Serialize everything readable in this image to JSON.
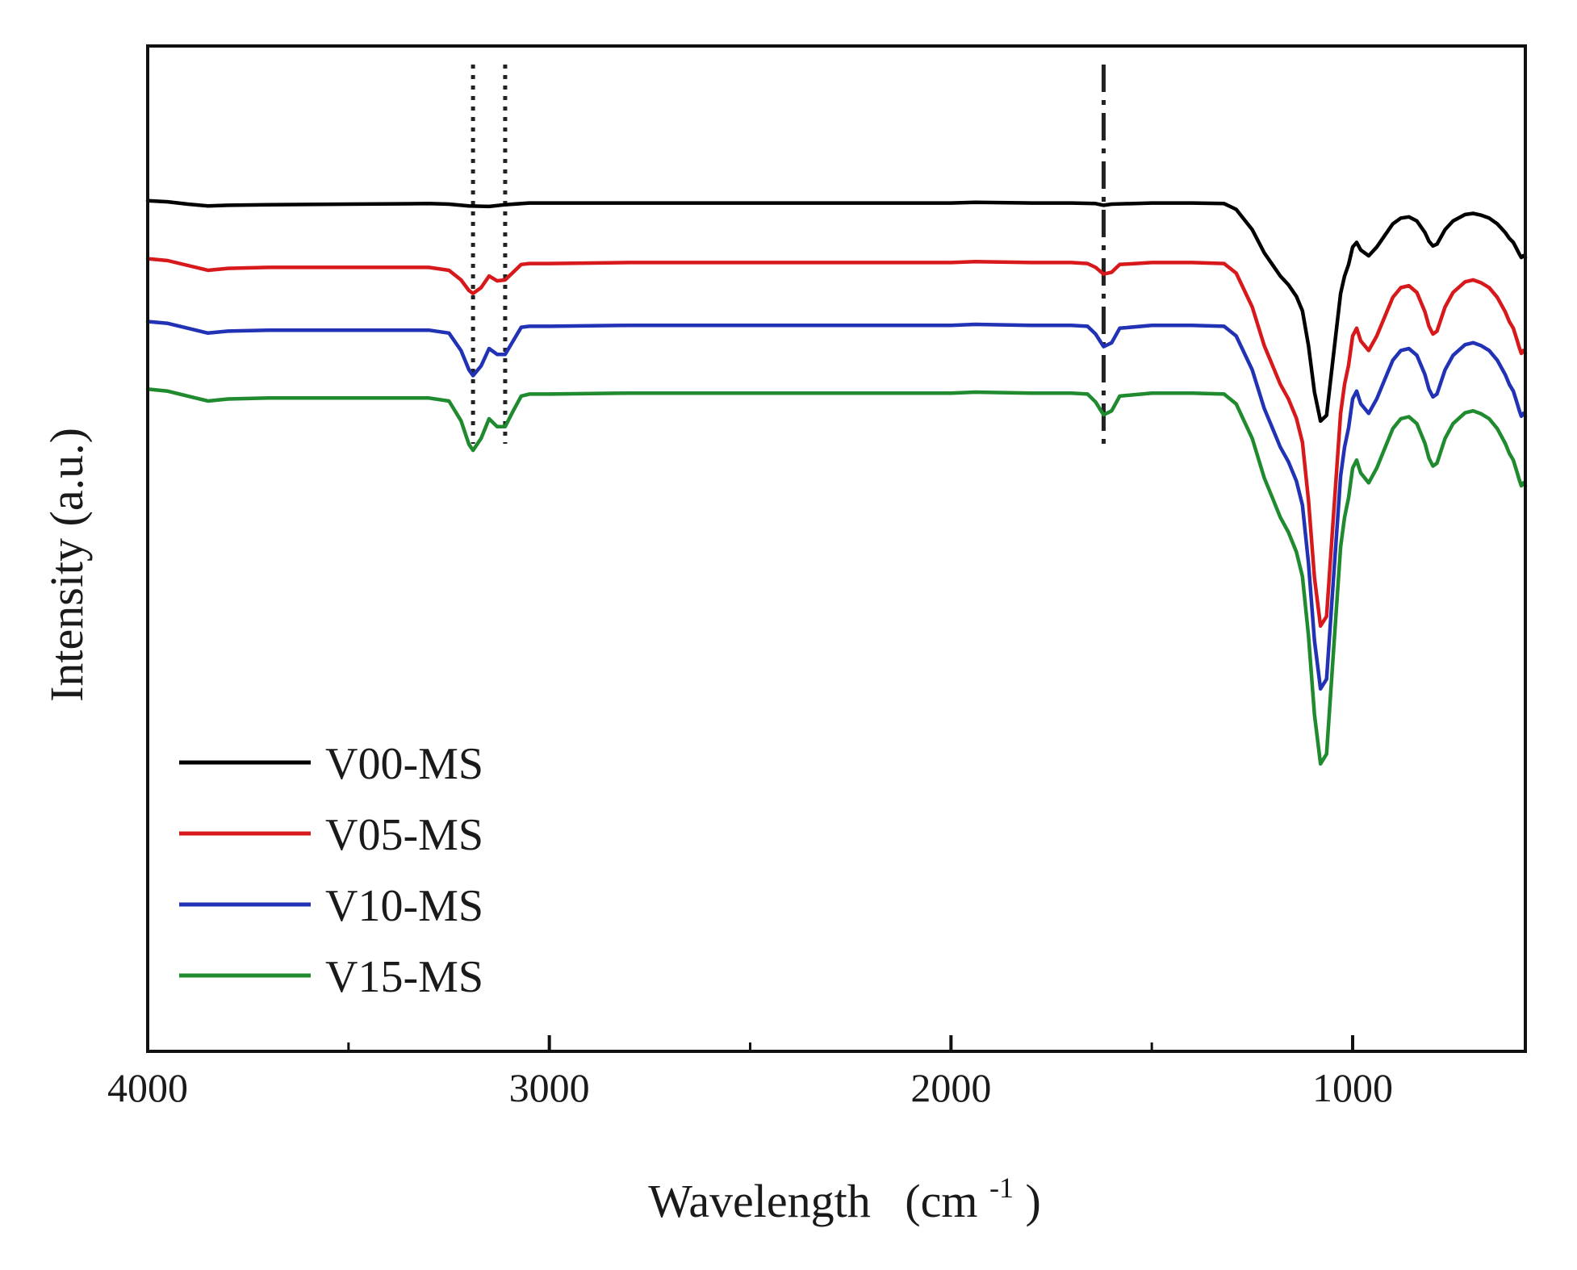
{
  "chart_data": {
    "type": "line",
    "title": "",
    "xlabel": "Wavelength",
    "xlabel_unit": "(cm",
    "xlabel_unit_sup": "-1",
    "xlabel_unit_close": ")",
    "ylabel": "Intensity  (a.u.)",
    "xlim": [
      4000,
      570
    ],
    "x_reversed": true,
    "x_ticks": [
      4000,
      3000,
      2000,
      1000
    ],
    "x_tick_labels": [
      "4000",
      "3000",
      "2000",
      "1000"
    ],
    "x_minor_ticks": [
      3500,
      2500,
      1500
    ],
    "ylim": [
      -88,
      16
    ],
    "y_ticks_labeled": false,
    "grid": false,
    "legend_position": "bottom-left",
    "reference_lines": [
      {
        "x": 3190,
        "style": "dotted"
      },
      {
        "x": 3110,
        "style": "dotted"
      },
      {
        "x": 1620,
        "style": "dash-dot"
      }
    ],
    "series": [
      {
        "name": "V00-MS",
        "color": "#000000",
        "offset": 0,
        "depth_scale": 0.6,
        "x": [
          4000,
          3950,
          3900,
          3850,
          3800,
          3700,
          3500,
          3300,
          3250,
          3200,
          3150,
          3110,
          3050,
          3000,
          2800,
          2500,
          2300,
          2000,
          1940,
          1800,
          1700,
          1640,
          1620,
          1600,
          1500,
          1400,
          1320,
          1290,
          1250,
          1220,
          1200,
          1180,
          1160,
          1140,
          1125,
          1110,
          1095,
          1080,
          1065,
          1050,
          1040,
          1030,
          1020,
          1010,
          1000,
          990,
          980,
          960,
          940,
          920,
          900,
          880,
          860,
          840,
          820,
          810,
          800,
          790,
          770,
          750,
          720,
          700,
          680,
          660,
          640,
          620,
          610,
          600,
          590,
          585,
          580,
          575,
          570
        ],
        "y": [
          0,
          -0.2,
          -0.6,
          -0.9,
          -0.8,
          -0.7,
          -0.6,
          -0.5,
          -0.6,
          -0.9,
          -1.0,
          -0.7,
          -0.4,
          -0.4,
          -0.4,
          -0.4,
          -0.4,
          -0.4,
          -0.3,
          -0.4,
          -0.4,
          -0.5,
          -0.8,
          -0.6,
          -0.4,
          -0.4,
          -0.5,
          -1.5,
          -5,
          -9,
          -11,
          -13,
          -14.5,
          -16.5,
          -19,
          -25,
          -33,
          -38,
          -37,
          -28,
          -22,
          -16,
          -13,
          -11,
          -8,
          -7.2,
          -8.5,
          -9.5,
          -8,
          -6,
          -4,
          -3,
          -2.8,
          -3.5,
          -5.5,
          -7,
          -7.8,
          -7.5,
          -5,
          -3.5,
          -2.4,
          -2.2,
          -2.5,
          -3,
          -4,
          -5.5,
          -6.5,
          -7.2,
          -8.5,
          -9.2,
          -9.8,
          -9.5,
          -9.8
        ]
      },
      {
        "name": "V05-MS",
        "color": "#d7191c",
        "offset": -6,
        "depth_scale": 1,
        "x": [
          4000,
          3950,
          3900,
          3850,
          3800,
          3700,
          3500,
          3300,
          3250,
          3220,
          3200,
          3190,
          3170,
          3150,
          3130,
          3110,
          3090,
          3070,
          3050,
          3000,
          2800,
          2500,
          2300,
          2000,
          1940,
          1800,
          1700,
          1660,
          1640,
          1620,
          1600,
          1580,
          1500,
          1400,
          1320,
          1290,
          1250,
          1220,
          1200,
          1180,
          1160,
          1140,
          1125,
          1110,
          1095,
          1080,
          1065,
          1050,
          1040,
          1030,
          1020,
          1010,
          1000,
          990,
          980,
          960,
          940,
          920,
          900,
          880,
          860,
          840,
          820,
          810,
          800,
          790,
          770,
          750,
          720,
          700,
          680,
          660,
          640,
          620,
          610,
          600,
          590,
          585,
          580,
          575,
          570
        ],
        "y": [
          0,
          -0.2,
          -0.7,
          -1.2,
          -1.0,
          -0.9,
          -0.9,
          -0.9,
          -1.2,
          -2.2,
          -3.3,
          -3.6,
          -3.0,
          -1.8,
          -2.3,
          -2.2,
          -1.4,
          -0.6,
          -0.5,
          -0.5,
          -0.4,
          -0.4,
          -0.4,
          -0.4,
          -0.3,
          -0.4,
          -0.4,
          -0.5,
          -0.9,
          -1.6,
          -1.4,
          -0.6,
          -0.4,
          -0.4,
          -0.5,
          -1.5,
          -5,
          -9,
          -11,
          -13,
          -14.5,
          -16.5,
          -19,
          -25,
          -33,
          -38,
          -37,
          -28,
          -22,
          -16,
          -13,
          -11,
          -8,
          -7.2,
          -8.5,
          -9.5,
          -8,
          -6,
          -4,
          -3,
          -2.8,
          -3.5,
          -5.5,
          -7,
          -7.8,
          -7.5,
          -5,
          -3.5,
          -2.4,
          -2.2,
          -2.5,
          -3,
          -4,
          -5.5,
          -6.5,
          -7.2,
          -8.5,
          -9.2,
          -9.8,
          -9.5,
          -9.8
        ]
      },
      {
        "name": "V10-MS",
        "color": "#2232b4",
        "offset": -12.5,
        "depth_scale": 1,
        "x": [
          4000,
          3950,
          3900,
          3850,
          3800,
          3700,
          3500,
          3300,
          3250,
          3220,
          3200,
          3190,
          3170,
          3150,
          3130,
          3110,
          3090,
          3070,
          3050,
          3000,
          2800,
          2500,
          2300,
          2000,
          1940,
          1800,
          1700,
          1660,
          1640,
          1620,
          1600,
          1580,
          1500,
          1400,
          1320,
          1290,
          1250,
          1220,
          1200,
          1180,
          1160,
          1140,
          1125,
          1110,
          1095,
          1080,
          1065,
          1050,
          1040,
          1030,
          1020,
          1010,
          1000,
          990,
          980,
          960,
          940,
          920,
          900,
          880,
          860,
          840,
          820,
          810,
          800,
          790,
          770,
          750,
          720,
          700,
          680,
          660,
          640,
          620,
          610,
          600,
          590,
          585,
          580,
          575,
          570
        ],
        "y": [
          0,
          -0.2,
          -0.7,
          -1.2,
          -1.0,
          -0.9,
          -0.9,
          -0.9,
          -1.2,
          -3.0,
          -5.0,
          -5.6,
          -4.6,
          -2.8,
          -3.4,
          -3.4,
          -2.0,
          -0.6,
          -0.5,
          -0.5,
          -0.4,
          -0.4,
          -0.4,
          -0.4,
          -0.3,
          -0.4,
          -0.4,
          -0.5,
          -1.3,
          -2.6,
          -2.2,
          -0.7,
          -0.4,
          -0.4,
          -0.5,
          -1.5,
          -5,
          -9,
          -11,
          -13,
          -14.5,
          -16.5,
          -19,
          -25,
          -33,
          -38,
          -37,
          -28,
          -22,
          -16,
          -13,
          -11,
          -8,
          -7.2,
          -8.5,
          -9.5,
          -8,
          -6,
          -4,
          -3,
          -2.8,
          -3.5,
          -5.5,
          -7,
          -7.8,
          -7.5,
          -5,
          -3.5,
          -2.4,
          -2.2,
          -2.5,
          -3,
          -4,
          -5.5,
          -6.5,
          -7.2,
          -8.5,
          -9.2,
          -9.8,
          -9.5,
          -9.8
        ]
      },
      {
        "name": "V15-MS",
        "color": "#1f8a2e",
        "offset": -19.5,
        "depth_scale": 1.02,
        "x": [
          4000,
          3950,
          3900,
          3850,
          3800,
          3700,
          3500,
          3300,
          3250,
          3220,
          3200,
          3190,
          3170,
          3150,
          3130,
          3110,
          3090,
          3070,
          3050,
          3000,
          2800,
          2500,
          2300,
          2000,
          1940,
          1800,
          1700,
          1660,
          1640,
          1620,
          1600,
          1580,
          1500,
          1400,
          1320,
          1290,
          1250,
          1220,
          1200,
          1180,
          1160,
          1140,
          1125,
          1110,
          1095,
          1080,
          1065,
          1050,
          1040,
          1030,
          1020,
          1010,
          1000,
          990,
          980,
          960,
          940,
          920,
          900,
          880,
          860,
          840,
          820,
          810,
          800,
          790,
          770,
          750,
          720,
          700,
          680,
          660,
          640,
          620,
          610,
          600,
          590,
          585,
          580,
          575,
          570
        ],
        "y": [
          0,
          -0.2,
          -0.7,
          -1.2,
          -1.0,
          -0.9,
          -0.9,
          -0.9,
          -1.2,
          -3.2,
          -5.6,
          -6.2,
          -5.0,
          -3.0,
          -3.8,
          -3.8,
          -2.2,
          -0.7,
          -0.5,
          -0.5,
          -0.4,
          -0.4,
          -0.4,
          -0.4,
          -0.3,
          -0.4,
          -0.4,
          -0.5,
          -1.3,
          -2.6,
          -2.2,
          -0.7,
          -0.4,
          -0.4,
          -0.5,
          -1.5,
          -5,
          -9,
          -11,
          -13,
          -14.5,
          -16.5,
          -19,
          -25,
          -33,
          -38,
          -37,
          -28,
          -22,
          -16,
          -13,
          -11,
          -8,
          -7.2,
          -8.5,
          -9.5,
          -8,
          -6,
          -4,
          -3,
          -2.8,
          -3.5,
          -5.5,
          -7,
          -7.8,
          -7.5,
          -5,
          -3.5,
          -2.4,
          -2.2,
          -2.5,
          -3,
          -4,
          -5.5,
          -6.5,
          -7.2,
          -8.5,
          -9.2,
          -9.8,
          -9.5,
          -9.8
        ]
      }
    ]
  }
}
